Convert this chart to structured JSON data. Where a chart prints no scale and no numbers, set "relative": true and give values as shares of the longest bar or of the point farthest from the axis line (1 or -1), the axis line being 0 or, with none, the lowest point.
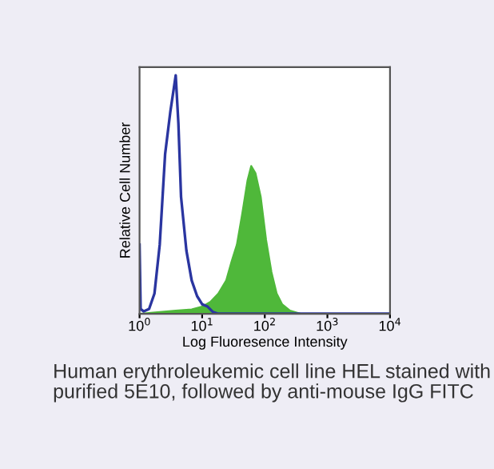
{
  "chart_data": {
    "type": "line",
    "relative": true,
    "log": "x",
    "xlabel": "Log Fluoresence Intensity",
    "ylabel": "Relative Cell Number",
    "xlim": [
      1,
      10000
    ],
    "xticks": [
      {
        "value": 1,
        "label": "10$^{0}$"
      },
      {
        "value": 10,
        "label": "10$^{1}$"
      },
      {
        "value": 100,
        "label": "10$^{2}$"
      },
      {
        "value": 1000,
        "label": "10$^{3}$"
      },
      {
        "value": 10000,
        "label": "10$^{4}$"
      }
    ],
    "grid": false,
    "legend": false,
    "marker": "none",
    "line_style": "solid",
    "series": [
      {
        "type": "area",
        "color": "#4fb83a",
        "x": [
          1,
          2.1,
          3.78,
          6.8,
          10.0,
          13.5,
          18.1,
          24.2,
          29.5,
          35.8,
          43.6,
          53.0,
          60.7,
          71.0,
          86.3,
          105,
          128,
          155,
          189,
          253,
          374,
          10000
        ],
        "values": [
          0,
          0.007,
          0.013,
          0.018,
          0.03,
          0.05,
          0.085,
          0.14,
          0.22,
          0.29,
          0.42,
          0.56,
          0.62,
          0.59,
          0.49,
          0.31,
          0.175,
          0.085,
          0.04,
          0.013,
          0,
          0
        ]
      },
      {
        "color": "#2a35a0",
        "x": [
          1,
          1.04,
          1.17,
          1.42,
          1.73,
          2.1,
          2.56,
          3.11,
          3.78,
          4.17,
          4.6,
          5.6,
          6.8,
          8.3,
          10.0,
          12.2,
          14.9,
          18.1,
          10000
        ],
        "values": [
          0.29,
          0.02,
          0.01,
          0.02,
          0.085,
          0.29,
          0.67,
          0.85,
          1.0,
          0.8,
          0.49,
          0.265,
          0.14,
          0.074,
          0.04,
          0.03,
          0.007,
          0,
          0
        ]
      }
    ],
    "annotations": [
      "Human erythroleukemic cell line HEL stained with purified 5E10, followed by anti-mouse IgG FITC"
    ]
  }
}
